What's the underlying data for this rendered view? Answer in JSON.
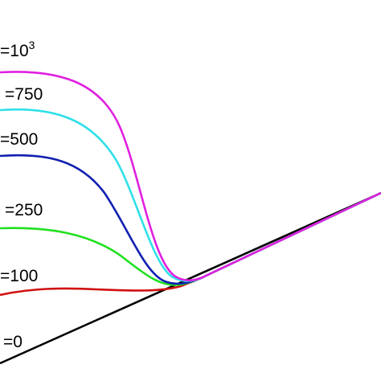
{
  "labels": [
    {
      "text": "=10",
      "sup": "3",
      "color": "#e020e0"
    },
    {
      "text": "=750",
      "color": "#30e0e8"
    },
    {
      "text": "=500",
      "color": "#1020b0"
    },
    {
      "text": "=250",
      "color": "#20e020"
    },
    {
      "text": "=100",
      "color": "#d01010"
    },
    {
      "text": "=0",
      "color": "#000000"
    }
  ]
}
